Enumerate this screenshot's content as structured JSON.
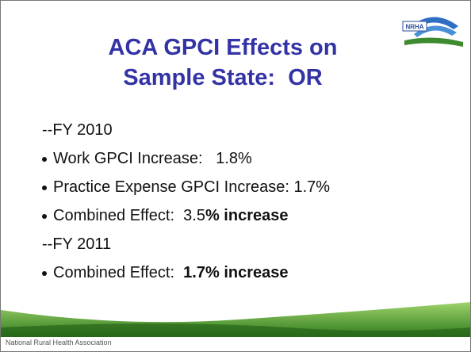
{
  "logo": "NRHA",
  "title": [
    "ACA GPCI Effects on",
    "Sample State:  OR"
  ],
  "items": [
    {
      "bullet": false,
      "parts": [
        {
          "text": "--FY 2010",
          "bold": false
        }
      ]
    },
    {
      "bullet": true,
      "parts": [
        {
          "text": "Work GPCI Increase:   1.8%",
          "bold": false
        }
      ]
    },
    {
      "bullet": true,
      "parts": [
        {
          "text": "Practice Expense GPCI Increase: 1.7%",
          "bold": false
        }
      ]
    },
    {
      "bullet": true,
      "parts": [
        {
          "text": "Combined Effect:  3.5",
          "bold": false
        },
        {
          "text": "% increase",
          "bold": true
        }
      ]
    },
    {
      "bullet": false,
      "parts": [
        {
          "text": "--FY 2011",
          "bold": false
        }
      ]
    },
    {
      "bullet": true,
      "parts": [
        {
          "text": "Combined Effect:  ",
          "bold": false
        },
        {
          "text": "1.7% increase",
          "bold": true
        }
      ]
    }
  ],
  "footer": "National Rural Health Association"
}
